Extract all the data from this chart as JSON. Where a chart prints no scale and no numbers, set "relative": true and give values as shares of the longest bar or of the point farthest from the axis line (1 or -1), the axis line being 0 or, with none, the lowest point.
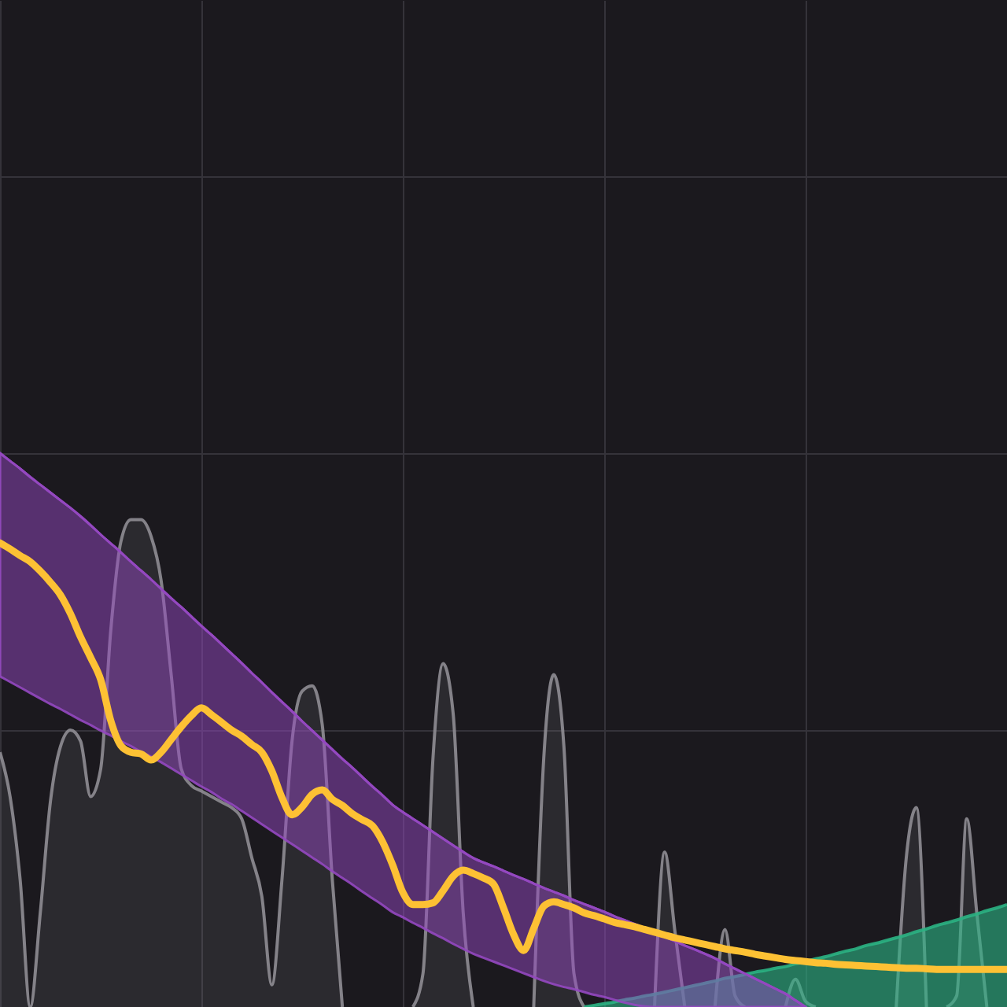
{
  "chart_data": {
    "type": "line",
    "relative": true,
    "grid": true,
    "categories": [
      null,
      null,
      null,
      null,
      null,
      null,
      null,
      null,
      null,
      null,
      null,
      null,
      null,
      null,
      null,
      null,
      null,
      null,
      null,
      null,
      null,
      null,
      null,
      null,
      null,
      null,
      null,
      null,
      null,
      null,
      null,
      null,
      null,
      null,
      null,
      null,
      null,
      null,
      null,
      null,
      null,
      null,
      null,
      null,
      null,
      null,
      null,
      null,
      null,
      null,
      null,
      null,
      null,
      null,
      null,
      null,
      null,
      null,
      null,
      null,
      null,
      null,
      null,
      null,
      null,
      null,
      null,
      null,
      null,
      null,
      null,
      null,
      null,
      null,
      null,
      null,
      null,
      null,
      null,
      null,
      null,
      null,
      null,
      null,
      null,
      null,
      null,
      null,
      null,
      null,
      null,
      null,
      null,
      null,
      null,
      null,
      null,
      null,
      null,
      null,
      null
    ],
    "series": [
      {
        "type": "area",
        "color": "#8f8d94",
        "values": [
          0.46,
          0.38,
          0.23,
          0,
          0.17,
          0.37,
          0.47,
          0.5,
          0.48,
          0.38,
          0.43,
          0.68,
          0.84,
          0.88,
          0.88,
          0.85,
          0.77,
          0.6,
          0.43,
          0.4,
          0.39,
          0.38,
          0.37,
          0.36,
          0.34,
          0.27,
          0.2,
          0.04,
          0.23,
          0.48,
          0.57,
          0.58,
          0.51,
          0.23,
          0,
          null,
          null,
          null,
          null,
          null,
          null,
          0,
          0.06,
          0.45,
          0.62,
          0.53,
          0.17,
          0,
          null,
          null,
          null,
          null,
          null,
          0,
          0.45,
          0.6,
          0.47,
          0.06,
          0,
          null,
          null,
          null,
          null,
          null,
          null,
          0,
          0.28,
          0.14,
          0,
          null,
          null,
          0,
          0.14,
          0.02,
          0,
          null,
          null,
          null,
          0,
          0.05,
          0.01,
          0,
          null,
          null,
          null,
          null,
          null,
          null,
          null,
          0,
          0.27,
          0.36,
          0,
          null,
          0,
          0.02,
          0.34,
          0.17,
          0,
          null,
          null
        ]
      },
      {
        "type": "area",
        "color": "#2bb283",
        "values": [
          null,
          null,
          null,
          null,
          null,
          null,
          null,
          null,
          null,
          null,
          null,
          null,
          null,
          null,
          null,
          null,
          null,
          null,
          null,
          null,
          null,
          null,
          null,
          null,
          null,
          null,
          null,
          null,
          null,
          null,
          null,
          null,
          null,
          null,
          null,
          null,
          null,
          null,
          null,
          null,
          null,
          null,
          null,
          null,
          null,
          null,
          null,
          null,
          null,
          null,
          null,
          null,
          null,
          null,
          null,
          null,
          null,
          null,
          0,
          0.003,
          0.006,
          0.009,
          0.013,
          0.016,
          0.02,
          0.023,
          0.027,
          0.031,
          0.035,
          0.039,
          0.043,
          0.047,
          0.052,
          0.055,
          0.059,
          0.063,
          0.066,
          0.07,
          0.073,
          0.078,
          0.082,
          0.087,
          0.091,
          0.096,
          0.101,
          0.105,
          0.111,
          0.115,
          0.12,
          0.125,
          0.13,
          0.136,
          0.141,
          0.147,
          0.152,
          0.157,
          0.163,
          0.168,
          0.174,
          0.179,
          0.185
        ]
      },
      {
        "color": "#9448c0",
        "values": [
          1.0,
          0.986,
          0.972,
          0.957,
          0.943,
          0.929,
          0.915,
          0.901,
          0.886,
          0.87,
          0.853,
          0.837,
          0.821,
          0.804,
          0.788,
          0.772,
          0.755,
          0.738,
          0.722,
          0.705,
          0.688,
          0.672,
          0.655,
          0.638,
          0.621,
          0.603,
          0.586,
          0.568,
          0.551,
          0.534,
          0.516,
          0.499,
          0.482,
          0.465,
          0.448,
          0.432,
          0.415,
          0.398,
          0.382,
          0.365,
          0.352,
          0.34,
          0.328,
          0.316,
          0.304,
          0.292,
          0.28,
          0.269,
          0.261,
          0.254,
          0.246,
          0.238,
          0.231,
          0.223,
          0.215,
          0.208,
          0.201,
          0.193,
          0.186,
          0.179,
          0.172,
          0.164,
          0.157,
          0.15,
          0.142,
          0.134,
          0.127,
          0.119,
          0.111,
          0.104,
          0.096,
          0.088,
          0.078,
          0.069,
          0.06,
          0.051,
          0.042,
          0.033,
          0.024,
          0.012,
          0,
          null,
          null,
          null,
          null,
          null,
          null,
          null,
          null,
          null,
          null,
          null,
          null,
          null,
          null,
          null,
          null,
          null,
          null,
          null,
          null
        ],
        "lower": [
          0.597,
          0.587,
          0.577,
          0.567,
          0.557,
          0.547,
          0.538,
          0.528,
          0.518,
          0.509,
          0.499,
          0.49,
          0.48,
          0.471,
          0.461,
          0.452,
          0.442,
          0.431,
          0.42,
          0.409,
          0.398,
          0.388,
          0.376,
          0.366,
          0.354,
          0.342,
          0.33,
          0.318,
          0.306,
          0.294,
          0.282,
          0.27,
          0.258,
          0.245,
          0.233,
          0.221,
          0.208,
          0.196,
          0.184,
          0.171,
          0.162,
          0.152,
          0.143,
          0.133,
          0.124,
          0.114,
          0.105,
          0.096,
          0.089,
          0.082,
          0.075,
          0.068,
          0.061,
          0.054,
          0.047,
          0.041,
          0.036,
          0.032,
          0.027,
          0.022,
          0.018,
          0.013,
          0.008,
          0.004,
          0.001,
          0,
          0,
          0,
          0,
          0,
          0,
          0,
          0,
          0,
          0,
          0,
          0,
          0,
          0,
          0,
          0,
          null,
          null,
          null,
          null,
          null,
          null,
          null,
          null,
          null,
          null,
          null,
          null,
          null,
          null,
          null,
          null,
          null,
          null,
          null,
          null
        ],
        "upper": [
          1.0,
          0.986,
          0.972,
          0.957,
          0.943,
          0.929,
          0.915,
          0.901,
          0.886,
          0.87,
          0.853,
          0.837,
          0.821,
          0.804,
          0.788,
          0.772,
          0.755,
          0.738,
          0.722,
          0.705,
          0.688,
          0.672,
          0.655,
          0.638,
          0.621,
          0.603,
          0.586,
          0.568,
          0.551,
          0.534,
          0.516,
          0.499,
          0.482,
          0.465,
          0.448,
          0.432,
          0.415,
          0.398,
          0.382,
          0.365,
          0.352,
          0.34,
          0.328,
          0.316,
          0.304,
          0.292,
          0.28,
          0.269,
          0.261,
          0.254,
          0.246,
          0.238,
          0.231,
          0.223,
          0.215,
          0.208,
          0.201,
          0.193,
          0.186,
          0.179,
          0.172,
          0.164,
          0.157,
          0.15,
          0.142,
          0.134,
          0.127,
          0.119,
          0.111,
          0.104,
          0.096,
          0.088,
          0.078,
          0.069,
          0.06,
          0.051,
          0.042,
          0.033,
          0.024,
          0.012,
          0,
          null,
          null,
          null,
          null,
          null,
          null,
          null,
          null,
          null,
          null,
          null,
          null,
          null,
          null,
          null,
          null,
          null,
          null,
          null,
          null
        ]
      },
      {
        "color": "#fdc134",
        "values": [
          0.838,
          0.827,
          0.815,
          0.804,
          0.787,
          0.767,
          0.744,
          0.71,
          0.668,
          0.631,
          0.591,
          0.517,
          0.472,
          0.46,
          0.457,
          0.446,
          0.46,
          0.483,
          0.506,
          0.526,
          0.54,
          0.528,
          0.514,
          0.5,
          0.489,
          0.474,
          0.46,
          0.426,
          0.378,
          0.347,
          0.361,
          0.384,
          0.392,
          0.375,
          0.364,
          0.349,
          0.338,
          0.327,
          0.298,
          0.256,
          0.207,
          0.185,
          0.185,
          0.188,
          0.21,
          0.236,
          0.247,
          0.241,
          0.233,
          0.222,
          0.179,
          0.131,
          0.102,
          0.142,
          0.182,
          0.19,
          0.185,
          0.179,
          0.17,
          0.165,
          0.159,
          0.153,
          0.149,
          0.145,
          0.14,
          0.135,
          0.13,
          0.125,
          0.121,
          0.117,
          0.113,
          0.109,
          0.105,
          0.102,
          0.099,
          0.095,
          0.092,
          0.089,
          0.086,
          0.084,
          0.082,
          0.08,
          0.079,
          0.077,
          0.076,
          0.075,
          0.074,
          0.073,
          0.072,
          0.071,
          0.07,
          0.07,
          0.069,
          0.068,
          0.068,
          0.068,
          0.068,
          0.068,
          0.068,
          0.068,
          0.068
        ]
      }
    ]
  }
}
